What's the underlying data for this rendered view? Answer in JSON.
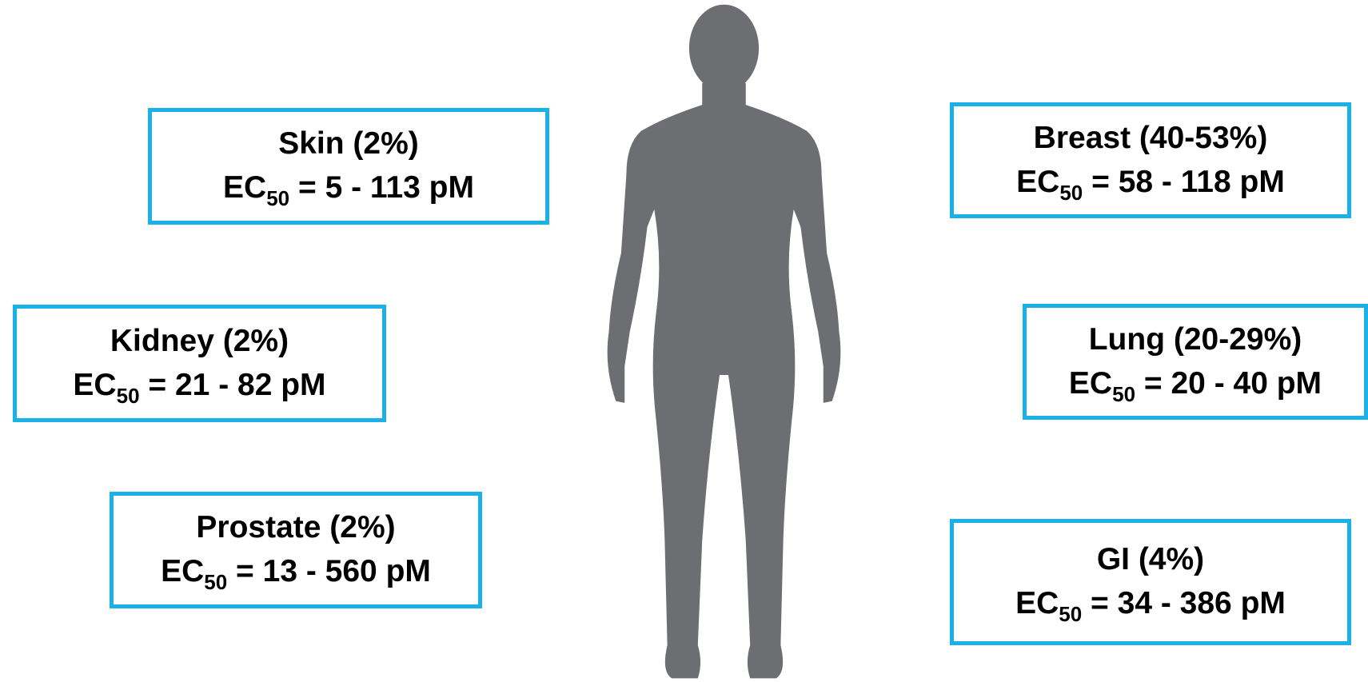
{
  "boxes": [
    {
      "title": "Skin (2%)",
      "label": "EC",
      "subscript": "50",
      "range": "= 5 - 113 pM"
    },
    {
      "title": "Kidney (2%)",
      "label": "EC",
      "subscript": "50",
      "range": "= 21 - 82 pM"
    },
    {
      "title": "Prostate (2%)",
      "label": "EC",
      "subscript": "50",
      "range": "= 13 - 560 pM"
    },
    {
      "title": "Breast (40-53%)",
      "label": "EC",
      "subscript": "50",
      "range": "= 58 - 118 pM"
    },
    {
      "title": "Lung (20-29%)",
      "label": "EC",
      "subscript": "50",
      "range": "= 20 - 40 pM"
    },
    {
      "title": "GI (4%)",
      "label": "EC",
      "subscript": "50",
      "range": "= 34 - 386 pM"
    }
  ]
}
